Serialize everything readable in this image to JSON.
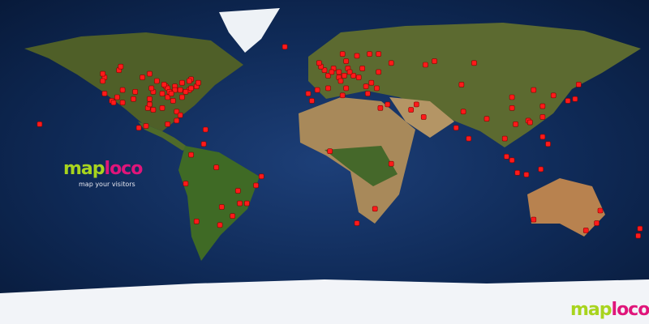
{
  "logo": {
    "part1": "map",
    "part2": "loco",
    "tagline": "map your visitors"
  },
  "colors": {
    "ocean": "#143469",
    "land": "#5b6a2c",
    "desert": "#b99a68",
    "ice": "#f2f4f8",
    "marker": "#ff1a1a",
    "logo_green": "#a8d41e",
    "logo_pink": "#e0157a"
  },
  "visitors": [
    [
      47,
      -122
    ],
    [
      45,
      -123
    ],
    [
      38,
      -122
    ],
    [
      34,
      -118
    ],
    [
      33,
      -117
    ],
    [
      36,
      -115
    ],
    [
      40,
      -112
    ],
    [
      39,
      -105
    ],
    [
      33,
      -112
    ],
    [
      30,
      -98
    ],
    [
      32,
      -97
    ],
    [
      29,
      -95
    ],
    [
      35,
      -97
    ],
    [
      39,
      -95
    ],
    [
      41,
      -96
    ],
    [
      45,
      -93
    ],
    [
      42,
      -88
    ],
    [
      41,
      -87
    ],
    [
      39,
      -86
    ],
    [
      42,
      -83
    ],
    [
      40,
      -83
    ],
    [
      40,
      -80
    ],
    [
      40,
      -75
    ],
    [
      41,
      -74
    ],
    [
      42,
      -71
    ],
    [
      39,
      -77
    ],
    [
      36,
      -79
    ],
    [
      34,
      -84
    ],
    [
      30,
      -90
    ],
    [
      28,
      -82
    ],
    [
      26,
      -80
    ],
    [
      36,
      -87
    ],
    [
      38,
      -90
    ],
    [
      44,
      -79
    ],
    [
      46,
      -74
    ],
    [
      45,
      -75
    ],
    [
      49,
      -97
    ],
    [
      51,
      -114
    ],
    [
      49,
      -123
    ],
    [
      53,
      -113
    ],
    [
      20,
      -99
    ],
    [
      19,
      -103
    ],
    [
      21,
      -87
    ],
    [
      23,
      -82
    ],
    [
      18,
      -66
    ],
    [
      21,
      -158
    ],
    [
      38,
      -85
    ],
    [
      43,
      -89
    ],
    [
      35,
      -106
    ],
    [
      44,
      -70
    ],
    [
      47,
      -101
    ],
    [
      51,
      0
    ],
    [
      53,
      -2
    ],
    [
      55,
      -3
    ],
    [
      48,
      2
    ],
    [
      52,
      5
    ],
    [
      50,
      4
    ],
    [
      52,
      13
    ],
    [
      48,
      11
    ],
    [
      50,
      8
    ],
    [
      47,
      8
    ],
    [
      45,
      9
    ],
    [
      41,
      12
    ],
    [
      40,
      -4
    ],
    [
      38,
      -9
    ],
    [
      41,
      2
    ],
    [
      48,
      16
    ],
    [
      50,
      14
    ],
    [
      52,
      21
    ],
    [
      47,
      19
    ],
    [
      44,
      26
    ],
    [
      42,
      23
    ],
    [
      38,
      24
    ],
    [
      60,
      25
    ],
    [
      59,
      18
    ],
    [
      60,
      10
    ],
    [
      56,
      12
    ],
    [
      55,
      37
    ],
    [
      60,
      30
    ],
    [
      50,
      30
    ],
    [
      54,
      56
    ],
    [
      56,
      61
    ],
    [
      55,
      83
    ],
    [
      43,
      76
    ],
    [
      41,
      29
    ],
    [
      32,
      35
    ],
    [
      25,
      55
    ],
    [
      32,
      51
    ],
    [
      29,
      48
    ],
    [
      64,
      -22
    ],
    [
      28,
      77
    ],
    [
      19,
      73
    ],
    [
      13,
      80
    ],
    [
      23,
      113
    ],
    [
      31,
      121
    ],
    [
      40,
      116
    ],
    [
      37,
      127
    ],
    [
      35,
      139
    ],
    [
      34,
      135
    ],
    [
      43,
      141
    ],
    [
      22,
      114
    ],
    [
      25,
      121
    ],
    [
      14,
      121
    ],
    [
      10,
      124
    ],
    [
      1,
      104
    ],
    [
      3,
      101
    ],
    [
      -6,
      107
    ],
    [
      -7,
      112
    ],
    [
      13,
      100
    ],
    [
      21,
      106
    ],
    [
      -4,
      120
    ],
    [
      24,
      90
    ],
    [
      36,
      104
    ],
    [
      30,
      104
    ],
    [
      30,
      31
    ],
    [
      -1,
      37
    ],
    [
      -26,
      28
    ],
    [
      -34,
      18
    ],
    [
      6,
      3
    ],
    [
      34,
      -7
    ],
    [
      37,
      10
    ],
    [
      -34,
      151
    ],
    [
      -38,
      145
    ],
    [
      -32,
      116
    ],
    [
      -27,
      153
    ],
    [
      -41,
      174
    ],
    [
      -37,
      175
    ],
    [
      -23,
      -47
    ],
    [
      -23,
      -43
    ],
    [
      -30,
      -51
    ],
    [
      -35,
      -58
    ],
    [
      -33,
      -71
    ],
    [
      -12,
      -77
    ],
    [
      4,
      -74
    ],
    [
      10,
      -67
    ],
    [
      -16,
      -48
    ],
    [
      -13,
      -38
    ],
    [
      -8,
      -35
    ],
    [
      -25,
      -57
    ],
    [
      -3,
      -60
    ]
  ]
}
